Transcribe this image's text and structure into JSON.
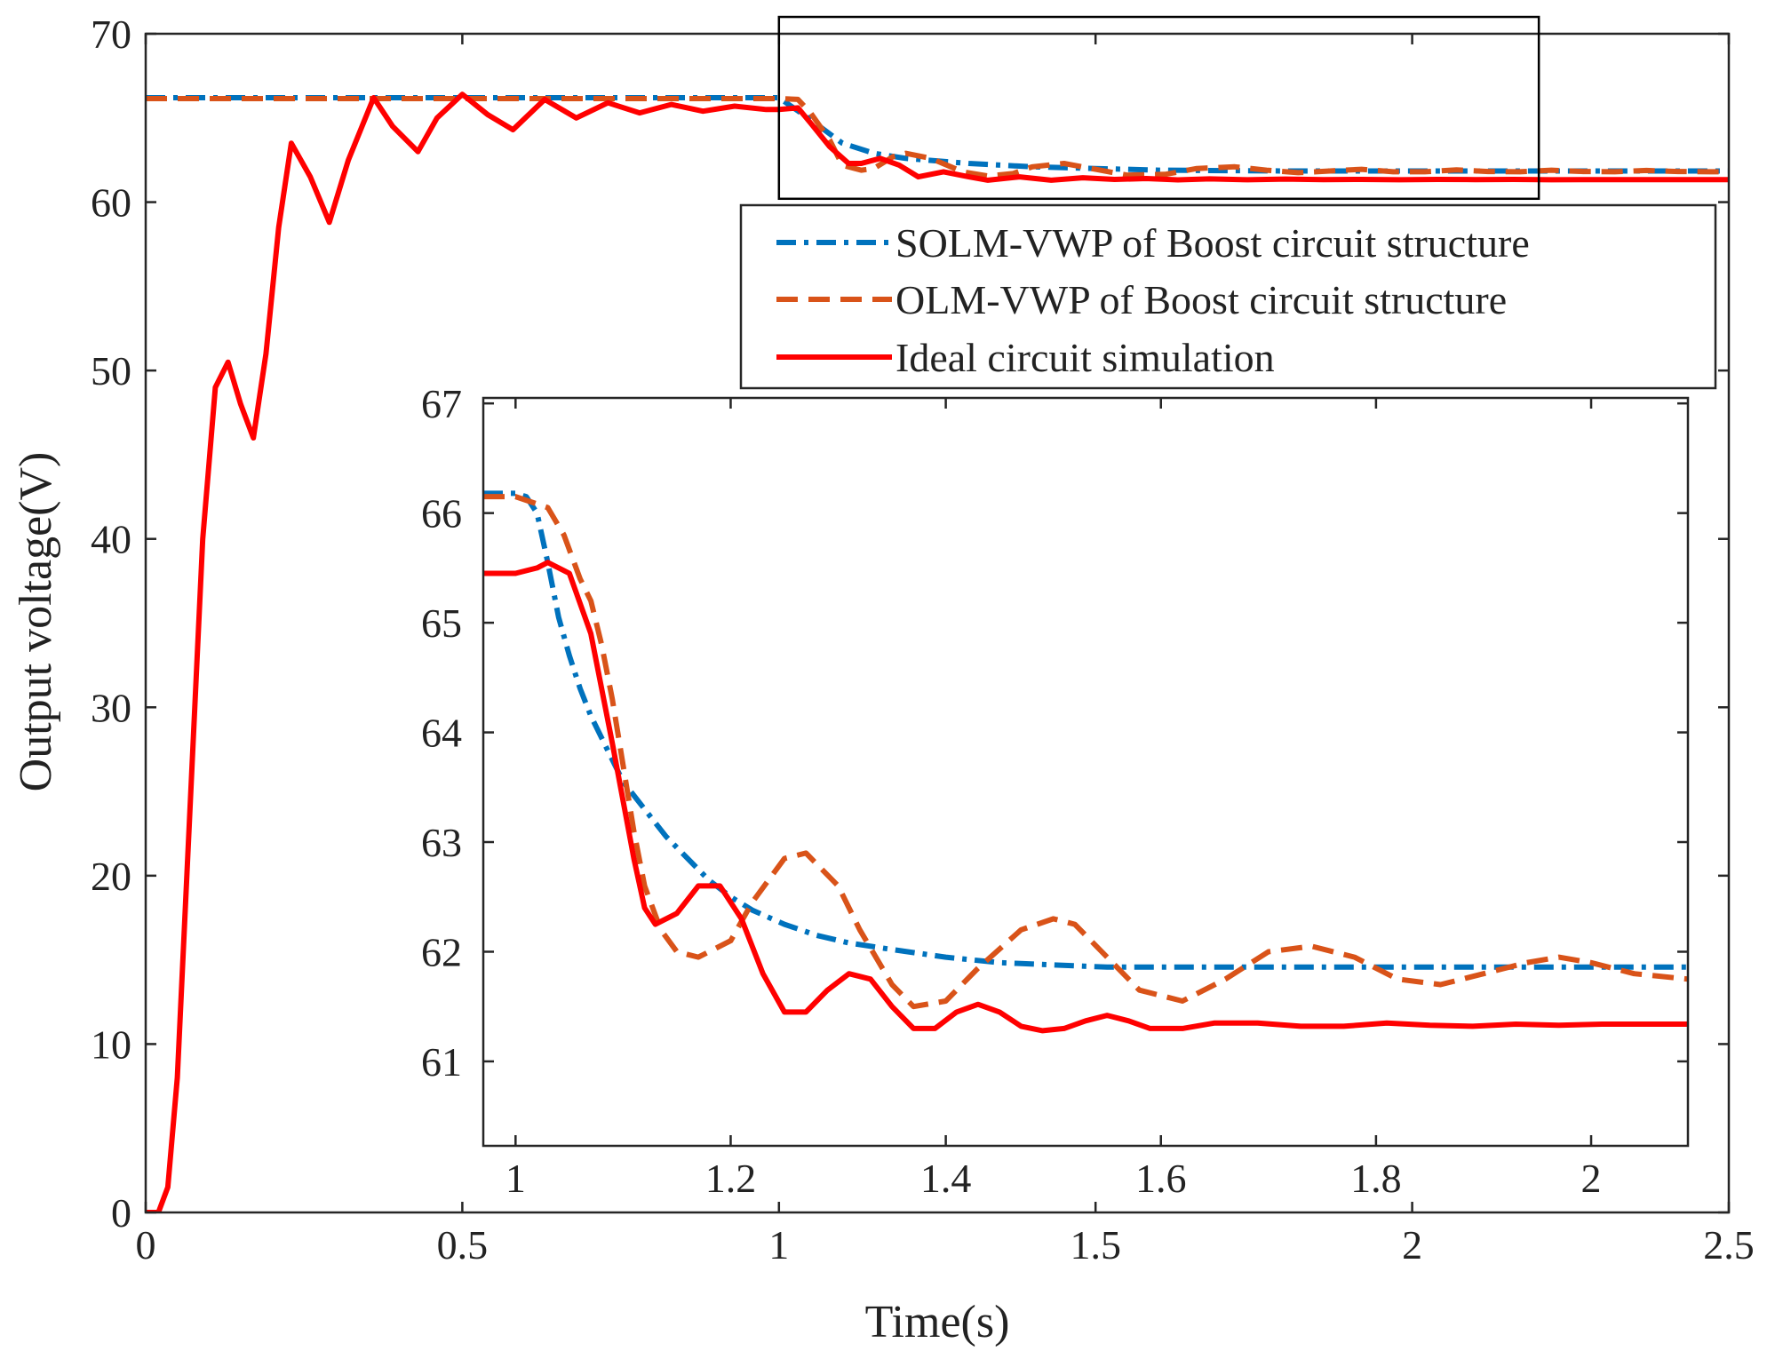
{
  "chart_data": [
    {
      "id": "main",
      "type": "line",
      "xlabel": "Time(s)",
      "ylabel": "Output voltage(V)",
      "xlim": [
        0,
        2.5
      ],
      "ylim": [
        0,
        70
      ],
      "xticks": [
        0,
        0.5,
        1,
        1.5,
        2,
        2.5
      ],
      "xtick_labels": [
        "0",
        "0.5",
        "1",
        "1.5",
        "2",
        "2.5"
      ],
      "yticks": [
        0,
        10,
        20,
        30,
        40,
        50,
        60,
        70
      ],
      "ytick_labels": [
        "0",
        "10",
        "20",
        "30",
        "40",
        "50",
        "60",
        "70"
      ],
      "grid": false,
      "legend_position": "top-right",
      "zoom_box": {
        "x": [
          1.0,
          2.2
        ],
        "y": [
          60.2,
          71.0
        ]
      },
      "series": [
        {
          "name": "SOLM-VWP of Boost circuit structure",
          "color": "#0072BD",
          "style": "dash-dot",
          "x": [
            0,
            1.0,
            1.05,
            1.1,
            1.15,
            1.2,
            1.3,
            1.4,
            1.5,
            1.6,
            1.8,
            2.0,
            2.2,
            2.5
          ],
          "y": [
            66.2,
            66.2,
            64.9,
            63.5,
            62.9,
            62.6,
            62.3,
            62.1,
            62.0,
            61.9,
            61.85,
            61.85,
            61.85,
            61.85
          ]
        },
        {
          "name": "OLM-VWP of Boost circuit structure",
          "color": "#D95319",
          "style": "dashed",
          "x": [
            0,
            1.0,
            1.03,
            1.05,
            1.08,
            1.1,
            1.13,
            1.15,
            1.18,
            1.2,
            1.24,
            1.29,
            1.33,
            1.37,
            1.4,
            1.45,
            1.5,
            1.55,
            1.61,
            1.66,
            1.72,
            1.77,
            1.82,
            1.87,
            1.92,
            1.97,
            2.02,
            2.07,
            2.12,
            2.17,
            2.22,
            2.27,
            2.32,
            2.37,
            2.42,
            2.47,
            2.5
          ],
          "y": [
            66.15,
            66.15,
            66.1,
            65.3,
            63.7,
            62.2,
            61.9,
            62.0,
            62.7,
            62.9,
            62.6,
            61.8,
            61.55,
            61.7,
            62.1,
            62.3,
            61.95,
            61.6,
            61.65,
            62.0,
            62.1,
            61.9,
            61.75,
            61.85,
            61.95,
            61.8,
            61.8,
            61.92,
            61.82,
            61.8,
            61.9,
            61.82,
            61.8,
            61.88,
            61.82,
            61.8,
            61.8
          ]
        },
        {
          "name": "Ideal circuit simulation",
          "color": "#FF0000",
          "style": "solid",
          "x": [
            0,
            0.02,
            0.035,
            0.05,
            0.07,
            0.09,
            0.11,
            0.13,
            0.15,
            0.17,
            0.19,
            0.21,
            0.23,
            0.26,
            0.29,
            0.32,
            0.36,
            0.39,
            0.43,
            0.46,
            0.5,
            0.54,
            0.58,
            0.63,
            0.68,
            0.73,
            0.78,
            0.83,
            0.88,
            0.93,
            0.98,
            1.0,
            1.03,
            1.05,
            1.08,
            1.11,
            1.13,
            1.16,
            1.19,
            1.22,
            1.26,
            1.3,
            1.33,
            1.38,
            1.43,
            1.48,
            1.53,
            1.58,
            1.63,
            1.68,
            1.74,
            1.8,
            1.86,
            1.92,
            1.98,
            2.04,
            2.1,
            2.16,
            2.22,
            2.28,
            2.35,
            2.42,
            2.5
          ],
          "y": [
            0,
            0,
            1.5,
            8,
            24,
            40,
            49,
            50.5,
            48,
            46,
            51,
            58.5,
            63.5,
            61.5,
            58.8,
            62.5,
            66.2,
            64.5,
            63,
            65,
            66.4,
            65.2,
            64.3,
            66.1,
            65.0,
            65.9,
            65.3,
            65.8,
            65.4,
            65.7,
            65.5,
            65.5,
            65.6,
            64.7,
            63.3,
            62.3,
            62.3,
            62.6,
            62.2,
            61.5,
            61.8,
            61.5,
            61.3,
            61.5,
            61.3,
            61.45,
            61.35,
            61.4,
            61.32,
            61.38,
            61.33,
            61.37,
            61.34,
            61.35,
            61.33,
            61.35,
            61.34,
            61.35,
            61.33,
            61.34,
            61.34,
            61.34,
            61.34
          ]
        }
      ]
    },
    {
      "id": "inset",
      "type": "line",
      "xlim": [
        0.97,
        2.09
      ],
      "ylim": [
        60.23,
        67.05
      ],
      "xticks": [
        1,
        1.2,
        1.4,
        1.6,
        1.8,
        2
      ],
      "xtick_labels": [
        "1",
        "1.2",
        "1.4",
        "1.6",
        "1.8",
        "2"
      ],
      "yticks": [
        61,
        62,
        63,
        64,
        65,
        66,
        67
      ],
      "ytick_labels": [
        "61",
        "62",
        "63",
        "64",
        "65",
        "66",
        "67"
      ],
      "grid": false,
      "series": [
        {
          "name": "SOLM-VWP of Boost circuit structure",
          "color": "#0072BD",
          "style": "dash-dot",
          "x": [
            0.97,
            1.0,
            1.01,
            1.02,
            1.03,
            1.04,
            1.05,
            1.06,
            1.07,
            1.08,
            1.09,
            1.1,
            1.12,
            1.14,
            1.16,
            1.18,
            1.2,
            1.22,
            1.25,
            1.28,
            1.31,
            1.35,
            1.4,
            1.45,
            1.5,
            1.55,
            1.6,
            1.7,
            1.8,
            1.9,
            2.0,
            2.09
          ],
          "y": [
            66.18,
            66.18,
            66.15,
            66.0,
            65.55,
            65.05,
            64.7,
            64.4,
            64.15,
            63.95,
            63.75,
            63.55,
            63.3,
            63.05,
            62.85,
            62.65,
            62.5,
            62.38,
            62.25,
            62.15,
            62.08,
            62.02,
            61.95,
            61.9,
            61.88,
            61.86,
            61.86,
            61.86,
            61.86,
            61.86,
            61.86,
            61.86
          ]
        },
        {
          "name": "OLM-VWP of Boost circuit structure",
          "color": "#D95319",
          "style": "dashed",
          "x": [
            0.97,
            1.0,
            1.03,
            1.045,
            1.06,
            1.07,
            1.08,
            1.09,
            1.1,
            1.11,
            1.12,
            1.135,
            1.15,
            1.17,
            1.2,
            1.22,
            1.25,
            1.27,
            1.3,
            1.32,
            1.35,
            1.37,
            1.4,
            1.43,
            1.47,
            1.5,
            1.52,
            1.55,
            1.58,
            1.62,
            1.66,
            1.7,
            1.74,
            1.78,
            1.82,
            1.86,
            1.9,
            1.94,
            1.97,
            2.0,
            2.04,
            2.09
          ],
          "y": [
            66.15,
            66.15,
            66.05,
            65.8,
            65.4,
            65.2,
            64.8,
            64.3,
            63.7,
            63.1,
            62.6,
            62.2,
            62.0,
            61.95,
            62.1,
            62.45,
            62.85,
            62.9,
            62.6,
            62.2,
            61.7,
            61.5,
            61.55,
            61.85,
            62.2,
            62.3,
            62.25,
            61.95,
            61.65,
            61.55,
            61.75,
            62.0,
            62.05,
            61.95,
            61.75,
            61.7,
            61.8,
            61.9,
            61.95,
            61.9,
            61.8,
            61.75
          ]
        },
        {
          "name": "Ideal circuit simulation",
          "color": "#FF0000",
          "style": "solid",
          "x": [
            0.97,
            1.0,
            1.02,
            1.03,
            1.05,
            1.07,
            1.09,
            1.11,
            1.12,
            1.13,
            1.15,
            1.17,
            1.19,
            1.21,
            1.23,
            1.25,
            1.27,
            1.29,
            1.31,
            1.33,
            1.35,
            1.37,
            1.39,
            1.41,
            1.43,
            1.45,
            1.47,
            1.49,
            1.51,
            1.53,
            1.55,
            1.57,
            1.59,
            1.62,
            1.65,
            1.69,
            1.73,
            1.77,
            1.81,
            1.85,
            1.89,
            1.93,
            1.97,
            2.01,
            2.05,
            2.09
          ],
          "y": [
            65.45,
            65.45,
            65.5,
            65.55,
            65.45,
            64.9,
            63.9,
            62.85,
            62.4,
            62.25,
            62.35,
            62.6,
            62.6,
            62.3,
            61.8,
            61.45,
            61.45,
            61.65,
            61.8,
            61.75,
            61.5,
            61.3,
            61.3,
            61.45,
            61.52,
            61.45,
            61.32,
            61.28,
            61.3,
            61.37,
            61.42,
            61.37,
            61.3,
            61.3,
            61.35,
            61.35,
            61.32,
            61.32,
            61.35,
            61.33,
            61.32,
            61.34,
            61.33,
            61.34,
            61.34,
            61.34
          ]
        }
      ]
    }
  ]
}
